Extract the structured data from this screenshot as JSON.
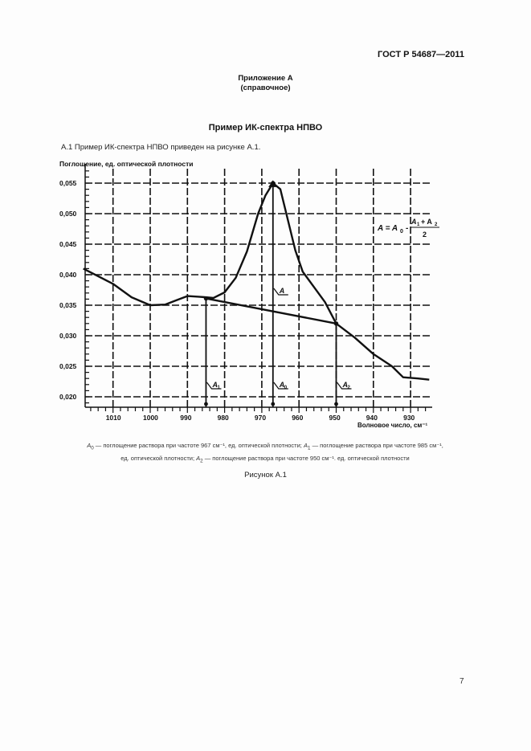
{
  "header": {
    "standard_id": "ГОСТ Р 54687—2011"
  },
  "annex": {
    "title": "Приложение А",
    "subtitle": "(справочное)"
  },
  "section": {
    "title": "Пример ИК-спектра НПВО",
    "intro": "А.1 Пример ИК-спектра НПВО приведен на рисунке А.1."
  },
  "figure": {
    "caption": "Рисунок А.1",
    "note_line1": "— поглощение раствора при частоте 967 см⁻¹, ед. оптической плотности; ",
    "note_line1b": "— поглощение раствора при частоте 985 см⁻¹,",
    "note_line2": "ед. оптической плотности; ",
    "note_line2b": "— поглощение раствора при частоте 950 см⁻¹. ед. оптической плотности",
    "sym_A0": "A",
    "sub_0": "0",
    "sym_A1": "A",
    "sub_1": "1",
    "sym_A2": "A",
    "sub_2": "2"
  },
  "chart_data": {
    "type": "line",
    "title": "",
    "ylabel": "Поглощение, ед. оптической плотности",
    "xlabel": "Волновое число, см⁻¹",
    "x_reversed": true,
    "xlim": [
      1018,
      925
    ],
    "ylim": [
      0.018,
      0.0585
    ],
    "grid": true,
    "x_ticks": [
      1010,
      1000,
      990,
      980,
      970,
      960,
      950,
      940,
      930
    ],
    "y_ticks": [
      "0,020",
      "0,025",
      "0,030",
      "0,035",
      "0,040",
      "0,045",
      "0,050",
      "0,055"
    ],
    "series": [
      {
        "name": "spectrum",
        "x": [
          1018,
          1010,
          1005,
          1000,
          996,
          993,
          990,
          987,
          985,
          983,
          980,
          977,
          974,
          971,
          969,
          967,
          965,
          963,
          961,
          959,
          956,
          953,
          950,
          945,
          940,
          935,
          932,
          928,
          925
        ],
        "y": [
          0.041,
          0.0385,
          0.0363,
          0.035,
          0.0351,
          0.0358,
          0.0365,
          0.0364,
          0.0363,
          0.0362,
          0.0371,
          0.0395,
          0.0438,
          0.05,
          0.053,
          0.055,
          0.054,
          0.049,
          0.044,
          0.0405,
          0.038,
          0.0355,
          0.032,
          0.0297,
          0.027,
          0.025,
          0.0232,
          0.023,
          0.0228
        ]
      },
      {
        "name": "baseline",
        "x": [
          985,
          950
        ],
        "y": [
          0.0361,
          0.032
        ]
      }
    ],
    "annotations": [
      {
        "label": "A",
        "x": 967,
        "desc": "peak height above baseline"
      },
      {
        "label": "A0",
        "x": 967,
        "y": 0.055
      },
      {
        "label": "A1",
        "x": 985,
        "y": 0.0361
      },
      {
        "label": "A2",
        "x": 950,
        "y": 0.032
      }
    ],
    "formula": "A = A0 − (A1 + A2) / 2"
  },
  "page": {
    "number": "7"
  }
}
